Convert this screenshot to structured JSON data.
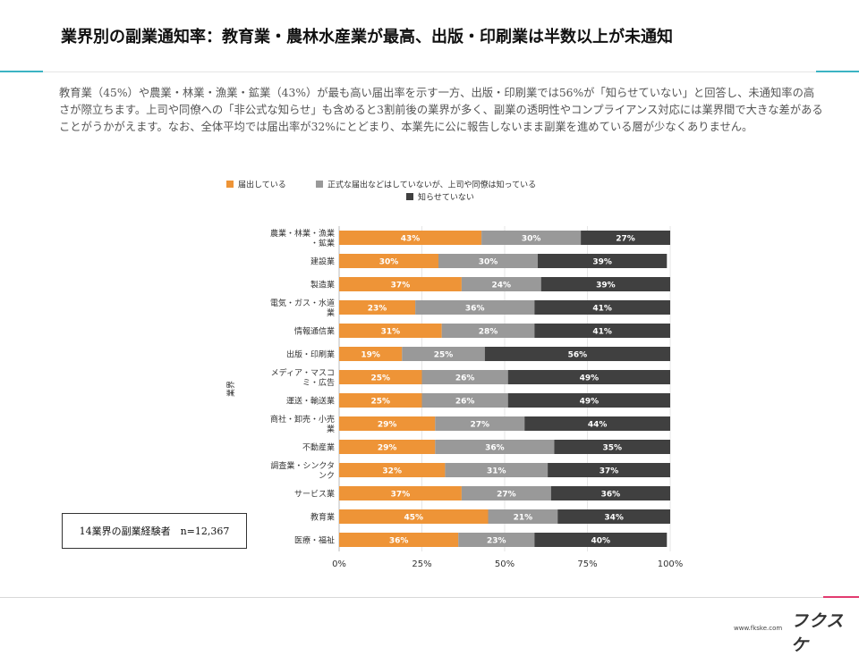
{
  "title": "業界別の副業通知率：教育業・農林水産業が最高、出版・印刷業は半数以上が未通知",
  "description": "教育業（45%）や農業・林業・漁業・鉱業（43%）が最も高い届出率を示す一方、出版・印刷業では56%が「知らせていない」と回答し、未通知率の高さが際立ちます。上司や同僚への「非公式な知らせ」も含めると3割前後の業界が多く、副業の透明性やコンプライアンス対応には業界間で大きな差があることがうかがえます。なお、全体平均では届出率が32%にとどまり、本業先に公に報告しないまま副業を進めている層が少なくありません。",
  "sample_note": "14業界の副業経験者　n=12,367",
  "footer": {
    "url": "www.fkske.com",
    "logo": "フクスケ"
  },
  "colors": {
    "notified": "#ee9437",
    "informal": "#999999",
    "not_notified": "#404040"
  },
  "chart_data": {
    "type": "bar",
    "orientation": "horizontal",
    "stacked": "100%",
    "ylabel": "業界",
    "xlim": [
      0,
      100
    ],
    "xticks": [
      "0%",
      "25%",
      "50%",
      "75%",
      "100%"
    ],
    "legend_position": "top",
    "categories": [
      "農業・林業・漁業・鉱業",
      "建設業",
      "製造業",
      "電気・ガス・水道業",
      "情報通信業",
      "出版・印刷業",
      "メディア・マスコミ・広告",
      "運送・輸送業",
      "商社・卸売・小売業",
      "不動産業",
      "調査業・シンクタンク",
      "サービス業",
      "教育業",
      "医療・福祉"
    ],
    "category_lines": [
      [
        "農業・林業・漁業",
        "・鉱業"
      ],
      [
        "建設業"
      ],
      [
        "製造業"
      ],
      [
        "電気・ガス・水道",
        "業"
      ],
      [
        "情報通信業"
      ],
      [
        "出版・印刷業"
      ],
      [
        "メディア・マスコ",
        "ミ・広告"
      ],
      [
        "運送・輸送業"
      ],
      [
        "商社・卸売・小売",
        "業"
      ],
      [
        "不動産業"
      ],
      [
        "調査業・シンクタ",
        "ンク"
      ],
      [
        "サービス業"
      ],
      [
        "教育業"
      ],
      [
        "医療・福祉"
      ]
    ],
    "series": [
      {
        "name": "届出している",
        "values": [
          43,
          30,
          37,
          23,
          31,
          19,
          25,
          25,
          29,
          29,
          32,
          37,
          45,
          36
        ]
      },
      {
        "name": "正式な届出などはしていないが、上司や同僚は知っている",
        "values": [
          30,
          30,
          24,
          36,
          28,
          25,
          26,
          26,
          27,
          36,
          31,
          27,
          21,
          23
        ]
      },
      {
        "name": "知らせていない",
        "values": [
          27,
          39,
          39,
          41,
          41,
          56,
          49,
          49,
          44,
          35,
          37,
          36,
          34,
          40
        ]
      }
    ]
  }
}
